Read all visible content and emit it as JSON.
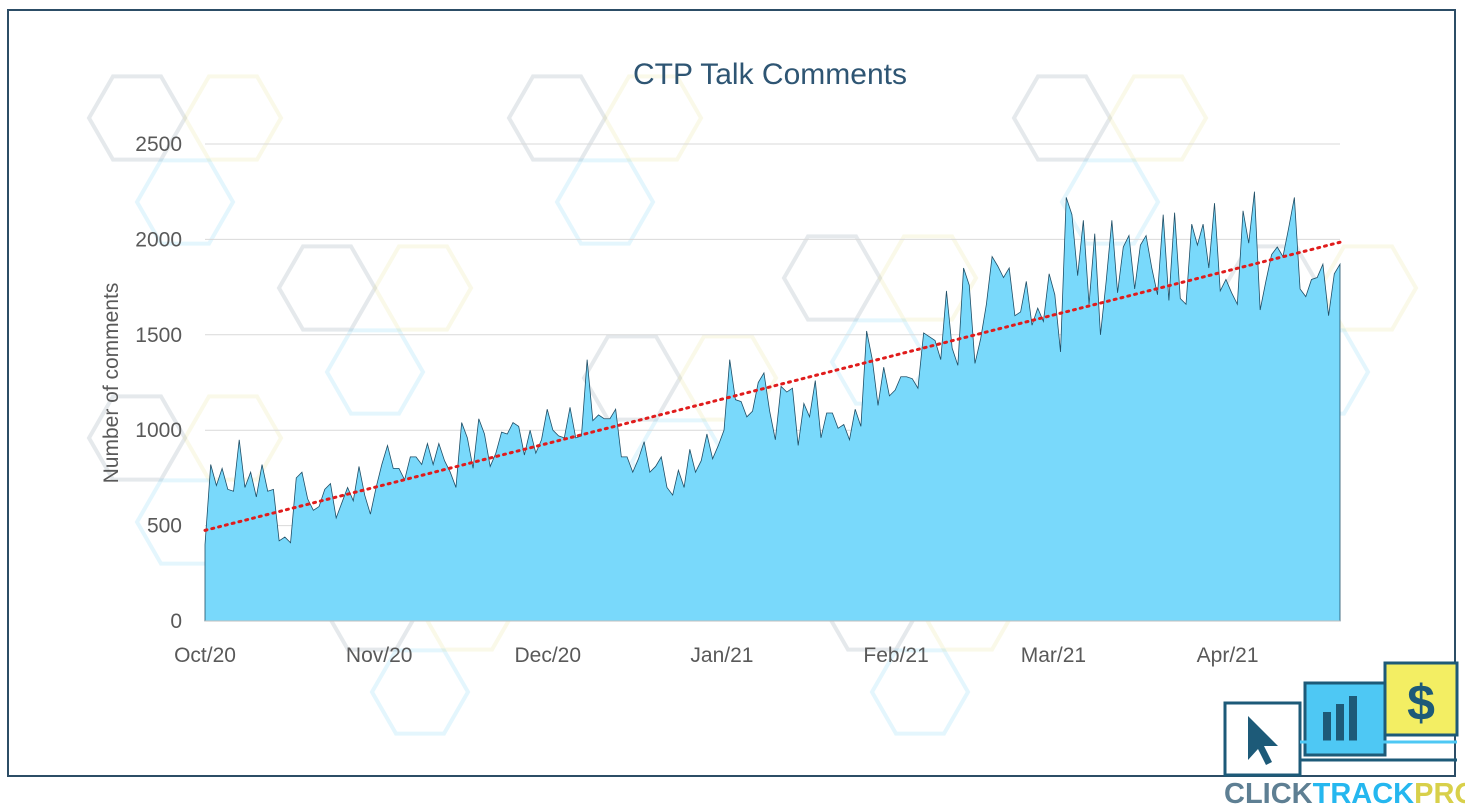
{
  "chart_data": {
    "type": "area",
    "title": "CTP Talk Comments",
    "xlabel": "",
    "ylabel": "Number of comments",
    "ylim": [
      0,
      2500
    ],
    "yticks": [
      0,
      500,
      1000,
      1500,
      2000,
      2500
    ],
    "x_tick_labels": [
      "Oct/20",
      "Nov/20",
      "Dec/20",
      "Jan/21",
      "Feb/21",
      "Mar/21",
      "Apr/21"
    ],
    "grid": true,
    "start_date": "2020-10-01",
    "end_date": "2021-04-21",
    "series": [
      {
        "values": [
          400,
          820,
          710,
          800,
          690,
          680,
          950,
          700,
          780,
          650,
          820,
          680,
          690,
          420,
          440,
          410,
          750,
          780,
          640,
          580,
          600,
          690,
          720,
          540,
          620,
          700,
          630,
          810,
          660,
          560,
          700,
          820,
          920,
          800,
          800,
          740,
          860,
          860,
          820,
          930,
          820,
          930,
          840,
          780,
          700,
          1040,
          960,
          800,
          1060,
          980,
          810,
          880,
          990,
          980,
          1040,
          1020,
          870,
          1000,
          880,
          950,
          1110,
          1000,
          970,
          960,
          1120,
          960,
          970,
          1370,
          1050,
          1080,
          1060,
          1060,
          1110,
          860,
          860,
          780,
          850,
          940,
          780,
          810,
          860,
          700,
          660,
          790,
          700,
          900,
          780,
          840,
          980,
          850,
          920,
          1000,
          1370,
          1160,
          1150,
          1070,
          1100,
          1250,
          1300,
          1100,
          950,
          1230,
          1200,
          1220,
          920,
          1140,
          1070,
          1260,
          960,
          1090,
          1090,
          1010,
          1030,
          950,
          1110,
          1020,
          1520,
          1370,
          1130,
          1330,
          1180,
          1210,
          1280,
          1280,
          1270,
          1220,
          1510,
          1490,
          1470,
          1370,
          1730,
          1430,
          1340,
          1850,
          1760,
          1350,
          1480,
          1660,
          1910,
          1860,
          1800,
          1850,
          1600,
          1620,
          1780,
          1550,
          1640,
          1570,
          1820,
          1710,
          1410,
          2220,
          2130,
          1810,
          2100,
          1660,
          2030,
          1500,
          1780,
          2100,
          1720,
          1960,
          2020,
          1740,
          1970,
          2020,
          1850,
          1710,
          2130,
          1680,
          2140,
          1690,
          1660,
          2080,
          1970,
          2080,
          1850,
          2190,
          1730,
          1790,
          1720,
          1660,
          2150,
          1980,
          2250,
          1630,
          1780,
          1920,
          1960,
          1910,
          2060,
          2220,
          1740,
          1700,
          1790,
          1800,
          1870,
          1600,
          1820,
          1870
        ]
      }
    ],
    "trendline": {
      "type": "linear",
      "start_value": 475,
      "end_value": 1985
    }
  },
  "logo": {
    "text_part1": "CLICK",
    "text_part2": "TRACK",
    "text_part3": "PROFIT"
  },
  "colors": {
    "area_fill": "#79d9fb",
    "area_stroke": "#1f4e66",
    "trend": "#e01c1c",
    "title": "#2e5573",
    "frame": "#2c4d66"
  }
}
